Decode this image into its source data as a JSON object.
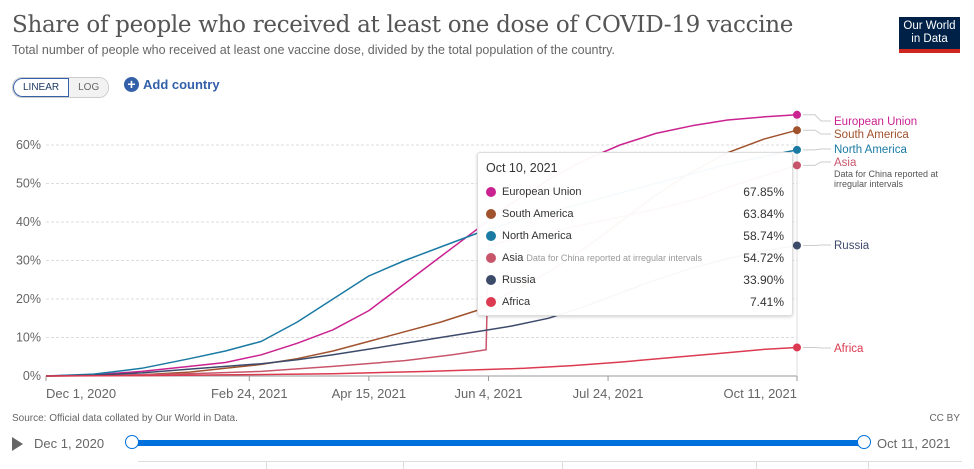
{
  "header": {
    "title": "Share of people who received at least one dose of COVID-19 vaccine",
    "subtitle": "Total number of people who received at least one vaccine dose, divided by the total population of the country.",
    "logo_line1": "Our World",
    "logo_line2": "in Data"
  },
  "controls": {
    "scale_options": [
      "LINEAR",
      "LOG"
    ],
    "scale_selected": "LINEAR",
    "add_country_label": "Add country",
    "add_icon": "plus-circle-icon"
  },
  "tooltip": {
    "date": "Oct 10, 2021",
    "rows": [
      {
        "name": "European Union",
        "note": "",
        "value": "67.85%",
        "color": "#ca2290"
      },
      {
        "name": "South America",
        "note": "",
        "value": "63.84%",
        "color": "#a0522d"
      },
      {
        "name": "North America",
        "note": "",
        "value": "58.74%",
        "color": "#1a7aa3"
      },
      {
        "name": "Asia",
        "note": "Data for China reported at irregular intervals",
        "value": "54.72%",
        "color": "#c8566b"
      },
      {
        "name": "Russia",
        "note": "",
        "value": "33.90%",
        "color": "#3d4b6b"
      },
      {
        "name": "Africa",
        "note": "",
        "value": "7.41%",
        "color": "#dc3a50"
      }
    ]
  },
  "footer": {
    "source": "Source: Official data collated by Our World in Data.",
    "license": "CC BY"
  },
  "timeline": {
    "play_icon": "play-icon",
    "start": "Dec 1, 2020",
    "end": "Oct 11, 2021"
  },
  "chart_data": {
    "type": "line",
    "title": "Share of people who received at least one dose of COVID-19 vaccine",
    "xlabel": "",
    "ylabel": "",
    "x_unit": "days since Dec 1, 2020",
    "xlim": [
      0,
      314
    ],
    "ylim": [
      0,
      60
    ],
    "grid": true,
    "legend_placement": "right",
    "x_ticks": [
      {
        "day": 0,
        "label": "Dec 1, 2020"
      },
      {
        "day": 85,
        "label": "Feb 24, 2021"
      },
      {
        "day": 135,
        "label": "Apr 15, 2021"
      },
      {
        "day": 185,
        "label": "Jun 4, 2021"
      },
      {
        "day": 235,
        "label": "Jul 24, 2021"
      },
      {
        "day": 314,
        "label": "Oct 11, 2021"
      }
    ],
    "y_ticks": [
      {
        "value": 0,
        "label": "0%"
      },
      {
        "value": 10,
        "label": "10%"
      },
      {
        "value": 20,
        "label": "20%"
      },
      {
        "value": 30,
        "label": "30%"
      },
      {
        "value": 40,
        "label": "40%"
      },
      {
        "value": 50,
        "label": "50%"
      },
      {
        "value": 60,
        "label": "60%"
      }
    ],
    "series": [
      {
        "name": "European Union",
        "color": "#ca2290",
        "label_note": "",
        "x": [
          0,
          20,
          40,
          60,
          75,
          90,
          105,
          120,
          135,
          150,
          165,
          180,
          195,
          210,
          225,
          240,
          255,
          270,
          285,
          300,
          314
        ],
        "y": [
          0,
          0.3,
          1.2,
          2.5,
          3.5,
          5.5,
          8.5,
          12,
          17,
          24,
          31,
          38,
          45,
          51,
          56,
          60,
          63,
          65,
          66.5,
          67.3,
          67.85
        ]
      },
      {
        "name": "South America",
        "color": "#a0522d",
        "label_note": "",
        "x": [
          0,
          20,
          40,
          60,
          75,
          90,
          105,
          120,
          135,
          150,
          165,
          180,
          195,
          210,
          225,
          240,
          255,
          270,
          285,
          300,
          314
        ],
        "y": [
          0,
          0.1,
          0.3,
          1,
          2,
          3,
          4.5,
          6.5,
          9,
          11.5,
          14,
          17,
          22,
          27,
          33,
          40,
          47,
          53,
          58,
          61.5,
          63.84
        ]
      },
      {
        "name": "North America",
        "color": "#1a7aa3",
        "label_note": "",
        "x": [
          0,
          20,
          40,
          60,
          75,
          90,
          105,
          120,
          135,
          150,
          165,
          180,
          195,
          210,
          225,
          240,
          255,
          270,
          285,
          300,
          314
        ],
        "y": [
          0,
          0.5,
          2,
          4.5,
          6.5,
          9,
          14,
          20,
          26,
          30,
          33.5,
          37,
          40,
          42.5,
          45,
          47.5,
          50,
          52.5,
          55,
          57,
          58.74
        ]
      },
      {
        "name": "Asia",
        "color": "#c8566b",
        "label_note": "Data for China reported at irregular intervals",
        "x": [
          0,
          30,
          60,
          90,
          120,
          150,
          170,
          184,
          185,
          200,
          215,
          230,
          245,
          260,
          275,
          285,
          295,
          305,
          314
        ],
        "y": [
          0,
          0.2,
          0.6,
          1.2,
          2.5,
          4,
          5.5,
          6.8,
          34,
          36,
          38,
          40,
          42,
          44,
          46.5,
          49,
          51,
          53,
          54.72
        ]
      },
      {
        "name": "Russia",
        "color": "#3d4b6b",
        "label_note": "",
        "x": [
          0,
          20,
          40,
          60,
          75,
          90,
          105,
          120,
          135,
          150,
          165,
          180,
          195,
          210,
          225,
          240,
          255,
          270,
          285,
          300,
          314
        ],
        "y": [
          0,
          0.2,
          0.8,
          1.8,
          2.5,
          3.2,
          4.2,
          5.5,
          7,
          8.5,
          10,
          11.5,
          13,
          15,
          18,
          21.5,
          25,
          28,
          30.5,
          32.5,
          33.9
        ]
      },
      {
        "name": "Africa",
        "color": "#dc3a50",
        "label_note": "",
        "x": [
          0,
          40,
          80,
          120,
          160,
          200,
          220,
          240,
          260,
          280,
          300,
          314
        ],
        "y": [
          0,
          0.1,
          0.3,
          0.6,
          1.2,
          2,
          2.7,
          3.6,
          4.7,
          5.8,
          6.9,
          7.41
        ]
      }
    ]
  }
}
